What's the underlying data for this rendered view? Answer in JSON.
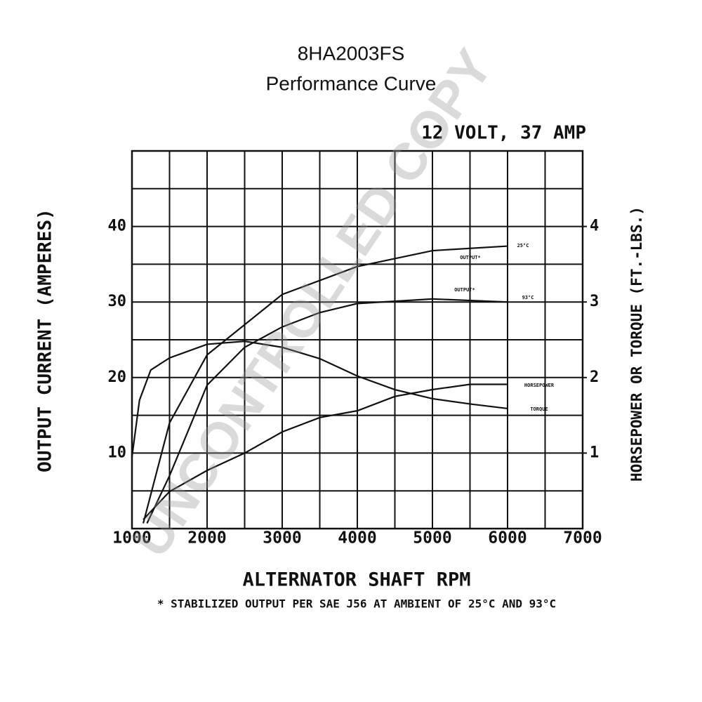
{
  "chart_data": {
    "type": "line",
    "title": "8HA2003FS",
    "subtitle": "Performance Curve",
    "rating": "12 VOLT, 37 AMP",
    "xlabel": "ALTERNATOR SHAFT RPM",
    "ylabel": "OUTPUT CURRENT (AMPERES)",
    "y2label": "HORSEPOWER OR TORQUE (FT.-LBS.)",
    "footnote": "* STABILIZED OUTPUT PER SAE J56 AT AMBIENT OF 25°C AND 93°C",
    "watermark": "UNCONTROLLED COPY",
    "xlim": [
      1000,
      7000
    ],
    "xticks": [
      1000,
      2000,
      3000,
      4000,
      5000,
      6000,
      7000
    ],
    "ylim": [
      0,
      50
    ],
    "yticks": [
      10,
      20,
      30,
      40
    ],
    "y2lim": [
      0,
      5
    ],
    "y2ticks": [
      1,
      2,
      3,
      4
    ],
    "grid": true,
    "color": "#111111",
    "series": [
      {
        "name": "OUTPUT*",
        "temp": "25°C",
        "x": [
          1150,
          1500,
          2000,
          2500,
          3000,
          4000,
          5000,
          6000
        ],
        "values": [
          0.7,
          14,
          23,
          27,
          31,
          34.7,
          36.8,
          37.4
        ]
      },
      {
        "name": "OUTPUT*",
        "temp": "93°C",
        "x": [
          1200,
          1500,
          2000,
          2500,
          3000,
          3500,
          4000,
          5000,
          6000
        ],
        "values": [
          0.7,
          7,
          19,
          24,
          26.7,
          28.6,
          29.8,
          30.4,
          30
        ]
      },
      {
        "name": "HORSEPOWER",
        "axis": "y2",
        "x": [
          1150,
          1500,
          2000,
          2500,
          3000,
          3500,
          4000,
          4500,
          5000,
          5500,
          6000
        ],
        "values": [
          0.12,
          0.49,
          0.77,
          1.0,
          1.28,
          1.47,
          1.56,
          1.75,
          1.84,
          1.91,
          1.91
        ]
      },
      {
        "name": "TORQUE",
        "axis": "y2",
        "x": [
          1000,
          1100,
          1250,
          1500,
          2000,
          2500,
          3000,
          3500,
          4000,
          4500,
          5000,
          5500,
          6000
        ],
        "values": [
          0.95,
          1.7,
          2.1,
          2.26,
          2.44,
          2.48,
          2.4,
          2.25,
          2.02,
          1.84,
          1.72,
          1.65,
          1.59
        ]
      }
    ]
  }
}
